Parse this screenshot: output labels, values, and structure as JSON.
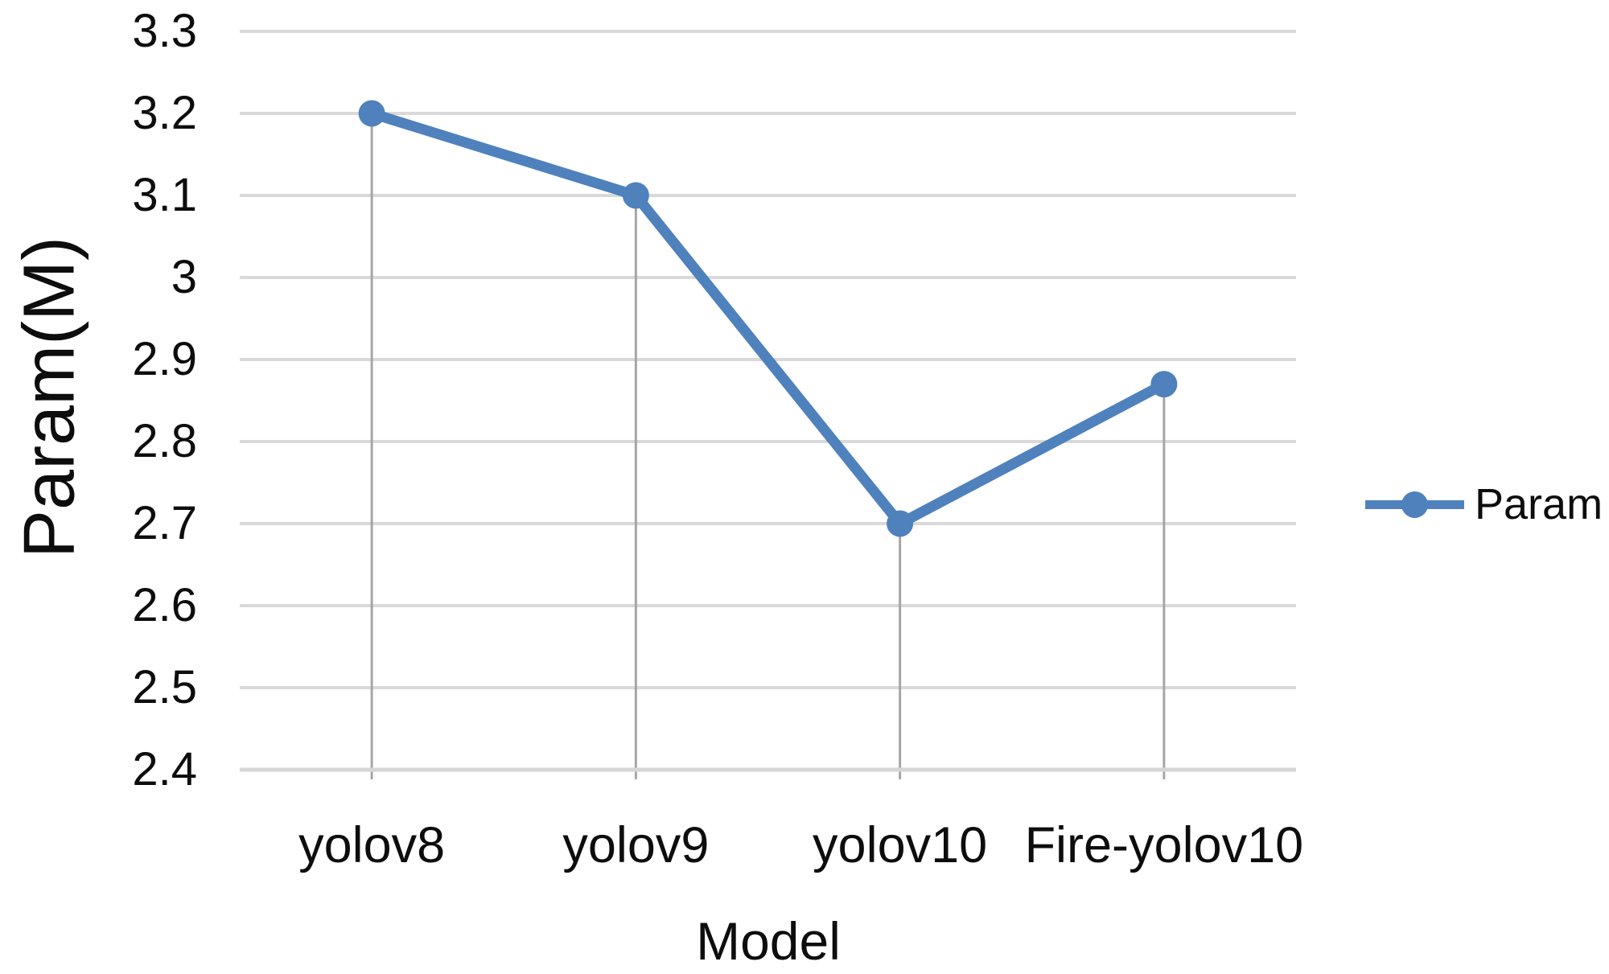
{
  "chart_data": {
    "type": "line",
    "categories": [
      "yolov8",
      "yolov9",
      "yolov10",
      "Fire-yolov10"
    ],
    "series": [
      {
        "name": "Param",
        "values": [
          3.2,
          3.1,
          2.7,
          2.87
        ]
      }
    ],
    "title": "",
    "xlabel": "Model",
    "ylabel": "Param(M)",
    "ylim": [
      2.4,
      3.3
    ],
    "ytick_step": 0.1,
    "yticks": [
      "3.3",
      "3.2",
      "3.1",
      "3",
      "2.9",
      "2.8",
      "2.7",
      "2.6",
      "2.5",
      "2.4"
    ],
    "grid": true,
    "drop_lines": true,
    "legend_position": "right",
    "colors": {
      "series": "#4F81BD",
      "gridline": "#D9D9D9",
      "dropline": "#A6A6A6",
      "axis": "#D6D6D6",
      "text": "#0d0d0d",
      "background": "#ffffff"
    }
  }
}
